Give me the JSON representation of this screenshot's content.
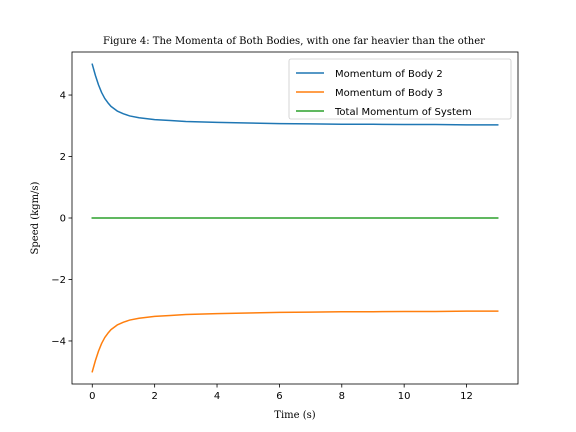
{
  "chart_data": {
    "type": "line",
    "title": "Figure 4: The Momenta of Both Bodies, with one far heavier than the other",
    "xlabel": "Time (s)",
    "ylabel": "Speed (kgm/s)",
    "xlim": [
      -0.65,
      13.65
    ],
    "ylim": [
      -5.4,
      5.4
    ],
    "xticks": [
      0,
      2,
      4,
      6,
      8,
      10,
      12
    ],
    "yticks": [
      -4,
      -2,
      0,
      2,
      4
    ],
    "ytick_labels": [
      "−4",
      "−2",
      "0",
      "2",
      "4"
    ],
    "xtick_labels": [
      "0",
      "2",
      "4",
      "6",
      "8",
      "10",
      "12"
    ],
    "grid": false,
    "legend_position": "top-right",
    "x": [
      0,
      0.1,
      0.2,
      0.3,
      0.4,
      0.5,
      0.6,
      0.8,
      1.0,
      1.2,
      1.5,
      2.0,
      2.5,
      3.0,
      4.0,
      5.0,
      6.0,
      7.0,
      8.0,
      9.0,
      10.0,
      11.0,
      12.0,
      13.0
    ],
    "series": [
      {
        "name": "Momentum of Body 2",
        "color": "#1f77b4",
        "values": [
          5.0,
          4.64,
          4.33,
          4.08,
          3.89,
          3.75,
          3.63,
          3.48,
          3.39,
          3.32,
          3.26,
          3.2,
          3.17,
          3.14,
          3.11,
          3.09,
          3.07,
          3.06,
          3.05,
          3.05,
          3.04,
          3.04,
          3.03,
          3.03
        ]
      },
      {
        "name": "Momentum of Body 3",
        "color": "#ff7f0e",
        "values": [
          -5.0,
          -4.64,
          -4.33,
          -4.08,
          -3.89,
          -3.75,
          -3.63,
          -3.48,
          -3.39,
          -3.32,
          -3.26,
          -3.2,
          -3.17,
          -3.14,
          -3.11,
          -3.09,
          -3.07,
          -3.06,
          -3.05,
          -3.05,
          -3.04,
          -3.04,
          -3.03,
          -3.03
        ]
      },
      {
        "name": "Total Momentum of System",
        "color": "#2ca02c",
        "values": [
          0,
          0,
          0,
          0,
          0,
          0,
          0,
          0,
          0,
          0,
          0,
          0,
          0,
          0,
          0,
          0,
          0,
          0,
          0,
          0,
          0,
          0,
          0,
          0
        ]
      }
    ]
  }
}
